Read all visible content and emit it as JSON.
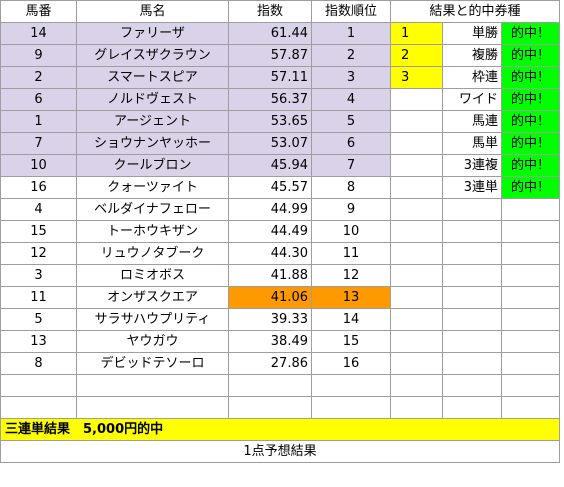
{
  "headers": {
    "col_no": "馬番",
    "col_name": "馬名",
    "col_index": "指数",
    "col_rank": "指数順位",
    "col_results": "結果と的中券種"
  },
  "rows": [
    {
      "no": "14",
      "name": "ファリーザ",
      "index": "61.44",
      "rank": "1",
      "highlight": "purple"
    },
    {
      "no": "9",
      "name": "グレイスザクラウン",
      "index": "57.87",
      "rank": "2",
      "highlight": "purple"
    },
    {
      "no": "2",
      "name": "スマートスピア",
      "index": "57.11",
      "rank": "3",
      "highlight": "purple"
    },
    {
      "no": "6",
      "name": "ノルドヴェスト",
      "index": "56.37",
      "rank": "4",
      "highlight": "purple"
    },
    {
      "no": "1",
      "name": "アージェント",
      "index": "53.65",
      "rank": "5",
      "highlight": "purple"
    },
    {
      "no": "7",
      "name": "ショウナンヤッホー",
      "index": "53.07",
      "rank": "6",
      "highlight": "purple"
    },
    {
      "no": "10",
      "name": "クールブロン",
      "index": "45.94",
      "rank": "7",
      "highlight": "purple"
    },
    {
      "no": "16",
      "name": "クォーツァイト",
      "index": "45.57",
      "rank": "8",
      "highlight": "none"
    },
    {
      "no": "4",
      "name": "ベルダイナフェロー",
      "index": "44.99",
      "rank": "9",
      "highlight": "none"
    },
    {
      "no": "15",
      "name": "トーホウキザン",
      "index": "44.49",
      "rank": "10",
      "highlight": "none"
    },
    {
      "no": "12",
      "name": "リュウノタブーク",
      "index": "44.30",
      "rank": "11",
      "highlight": "none"
    },
    {
      "no": "3",
      "name": "ロミオボス",
      "index": "41.88",
      "rank": "12",
      "highlight": "none"
    },
    {
      "no": "11",
      "name": "オンザスクエア",
      "index": "41.06",
      "rank": "13",
      "highlight": "orange"
    },
    {
      "no": "5",
      "name": "サラサハウプリティ",
      "index": "39.33",
      "rank": "14",
      "highlight": "none"
    },
    {
      "no": "13",
      "name": "ヤウガウ",
      "index": "38.49",
      "rank": "15",
      "highlight": "none"
    },
    {
      "no": "8",
      "name": "デビッドテソーロ",
      "index": "27.86",
      "rank": "16",
      "highlight": "none"
    },
    {
      "no": "",
      "name": "",
      "index": "",
      "rank": "",
      "highlight": "none"
    },
    {
      "no": "",
      "name": "",
      "index": "",
      "rank": "",
      "highlight": "none"
    }
  ],
  "results": [
    {
      "place": "1",
      "ticket": "単勝",
      "hit": "的中！"
    },
    {
      "place": "2",
      "ticket": "複勝",
      "hit": "的中！"
    },
    {
      "place": "3",
      "ticket": "枠連",
      "hit": "的中！"
    },
    {
      "place": "",
      "ticket": "ワイド",
      "hit": "的中！"
    },
    {
      "place": "",
      "ticket": "馬連",
      "hit": "的中！"
    },
    {
      "place": "",
      "ticket": "馬単",
      "hit": "的中！"
    },
    {
      "place": "",
      "ticket": "3連複",
      "hit": "的中！"
    },
    {
      "place": "",
      "ticket": "3連単",
      "hit": "的中！"
    }
  ],
  "banner": "三連単結果　5,000円的中",
  "footer": "1点予想結果",
  "colors": {
    "purple": "#d9d2e9",
    "orange": "#ff9900",
    "yellow": "#ffff00",
    "green": "#00ff00"
  }
}
